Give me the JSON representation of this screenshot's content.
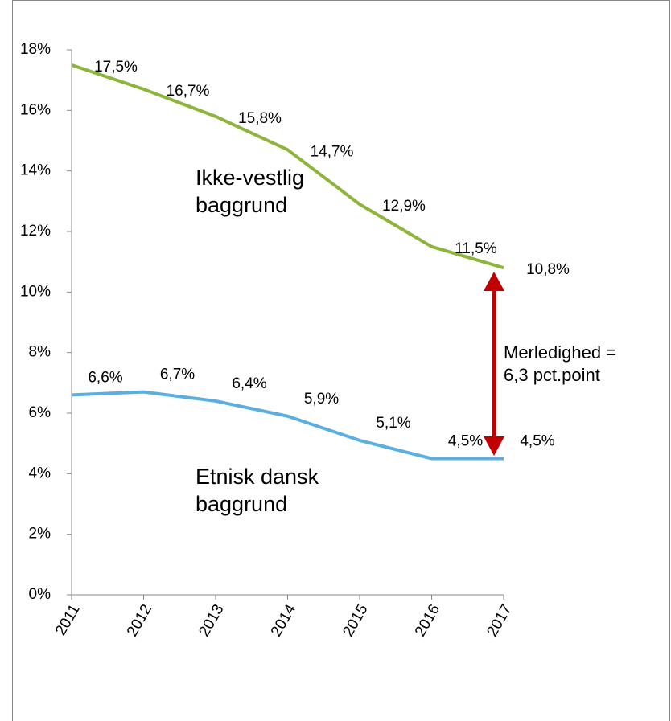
{
  "chart_data": {
    "type": "line",
    "categories": [
      "2011",
      "2012",
      "2013",
      "2014",
      "2015",
      "2016",
      "2017"
    ],
    "series": [
      {
        "name": "Ikke-vestlig baggrund",
        "color": "#8db53c",
        "values": [
          17.5,
          16.7,
          15.8,
          14.7,
          12.9,
          11.5,
          10.8
        ],
        "value_labels": [
          "17,5%",
          "16,7%",
          "15,8%",
          "14,7%",
          "12,9%",
          "11,5%",
          "10,8%"
        ]
      },
      {
        "name": "Etnisk dansk baggrund",
        "color": "#5aaee0",
        "values": [
          6.6,
          6.7,
          6.4,
          5.9,
          5.1,
          4.5,
          4.5
        ],
        "value_labels": [
          "6,6%",
          "6,7%",
          "6,4%",
          "5,9%",
          "5,1%",
          "4,5%",
          "4,5%"
        ]
      }
    ],
    "annotation": "Merledighed = 6,3 pct.point",
    "ylim": [
      0,
      18
    ],
    "yticks": [
      {
        "value": 0,
        "label": "0%"
      },
      {
        "value": 2,
        "label": "2%"
      },
      {
        "value": 4,
        "label": "4%"
      },
      {
        "value": 6,
        "label": "6%"
      },
      {
        "value": 8,
        "label": "8%"
      },
      {
        "value": 10,
        "label": "10%"
      },
      {
        "value": 12,
        "label": "12%"
      },
      {
        "value": 14,
        "label": "14%"
      },
      {
        "value": 16,
        "label": "16%"
      },
      {
        "value": 18,
        "label": "18%"
      }
    ],
    "grid": false
  }
}
